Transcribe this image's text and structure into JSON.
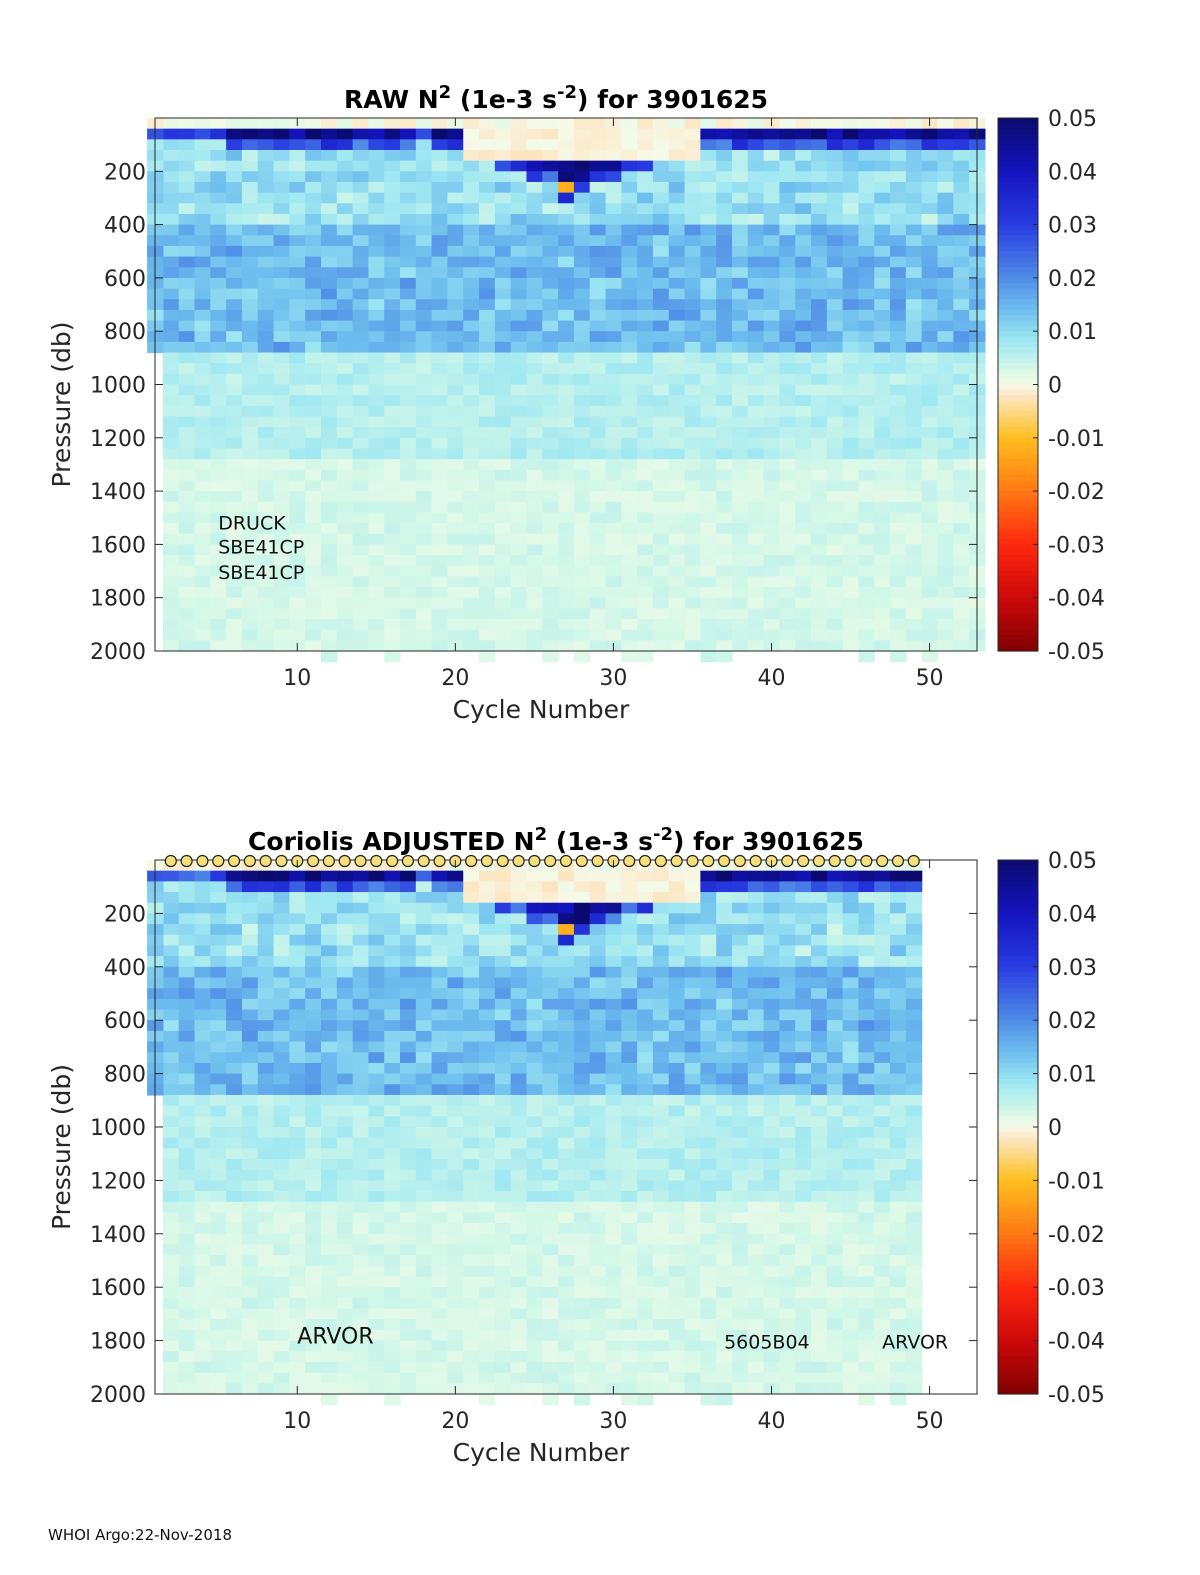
{
  "chart_data": [
    {
      "type": "heatmap",
      "title": {
        "prefix": "RAW N",
        "sup1": "2",
        "mid": " (1e-3 s",
        "sup2": "-2",
        "suffix": ") for 3901625"
      },
      "xlabel": "Cycle Number",
      "ylabel": "Pressure (db)",
      "xlim": [
        1,
        53
      ],
      "ylim": [
        0,
        2000
      ],
      "y_reversed": true,
      "xticks": [
        10,
        20,
        30,
        40,
        50
      ],
      "yticks": [
        200,
        400,
        600,
        800,
        1000,
        1200,
        1400,
        1600,
        1800,
        2000
      ],
      "last_cycle": 53,
      "colorbar": {
        "range": [
          -0.05,
          0.05
        ],
        "ticks": [
          "0.05",
          "0.04",
          "0.03",
          "0.02",
          "0.01",
          "0",
          "-0.01",
          "-0.02",
          "-0.03",
          "-0.04",
          "-0.05"
        ]
      },
      "annotations": [
        {
          "text": "DRUCK",
          "cycle": 5,
          "pressure": 1545
        },
        {
          "text": "SBE41CP",
          "cycle": 5,
          "pressure": 1635
        },
        {
          "text": "SBE41CP",
          "cycle": 5,
          "pressure": 1730
        }
      ],
      "markers": false
    },
    {
      "type": "heatmap",
      "title": {
        "prefix": "Coriolis  ADJUSTED N",
        "sup1": "2",
        "mid": " (1e-3 s",
        "sup2": "-2",
        "suffix": ") for 3901625"
      },
      "xlabel": "Cycle Number",
      "ylabel": "Pressure (db)",
      "xlim": [
        1,
        53
      ],
      "ylim": [
        0,
        2000
      ],
      "y_reversed": true,
      "xticks": [
        10,
        20,
        30,
        40,
        50
      ],
      "yticks": [
        200,
        400,
        600,
        800,
        1000,
        1200,
        1400,
        1600,
        1800,
        2000
      ],
      "last_cycle": 49,
      "colorbar": {
        "range": [
          -0.05,
          0.05
        ],
        "ticks": [
          "0.05",
          "0.04",
          "0.03",
          "0.02",
          "0.01",
          "0",
          "-0.01",
          "-0.02",
          "-0.03",
          "-0.04",
          "-0.05"
        ]
      },
      "annotations": [
        {
          "text": "ARVOR",
          "cycle": 10,
          "pressure": 1810
        },
        {
          "text": "5605B04",
          "cycle": 37,
          "pressure": 1830
        },
        {
          "text": "ARVOR",
          "cycle": 47,
          "pressure": 1830
        }
      ],
      "markers": true
    }
  ],
  "footer": "WHOI Argo:22-Nov-2018"
}
